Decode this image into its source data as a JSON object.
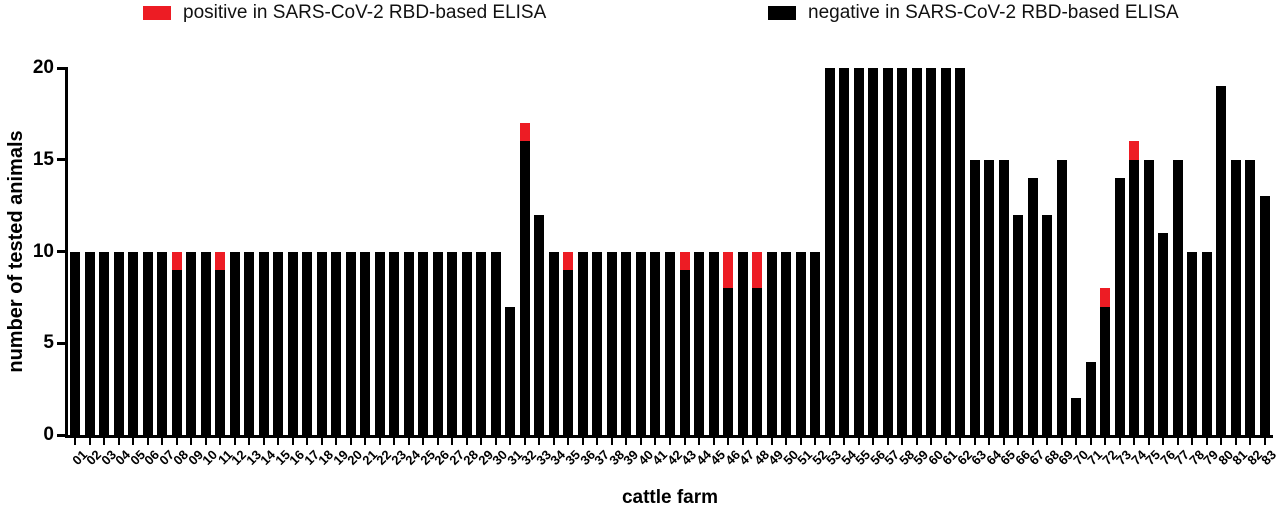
{
  "figure": {
    "kind": "stacked bar chart",
    "background": "#ffffff"
  },
  "legend": {
    "positive_label": "positive in SARS-CoV-2 RBD-based ELISA",
    "negative_label": "negative in SARS-CoV-2 RBD-based ELISA"
  },
  "chart_data": {
    "type": "bar",
    "stacked": true,
    "title": "",
    "xlabel": "cattle farm",
    "ylabel": "number of tested animals",
    "ylim": [
      0,
      20
    ],
    "yticks": [
      0,
      5,
      10,
      15,
      20
    ],
    "grid": false,
    "legend_position": "top",
    "series": [
      {
        "name": "positive in SARS-CoV-2 RBD-based ELISA",
        "color": "#ed1c24"
      },
      {
        "name": "negative in SARS-CoV-2 RBD-based ELISA",
        "color": "#000000"
      }
    ],
    "categories": [
      "01",
      "02",
      "03",
      "04",
      "05",
      "06",
      "07",
      "08",
      "09",
      "10",
      "11",
      "12",
      "13",
      "14",
      "15",
      "16",
      "17",
      "18",
      "19",
      "20",
      "21",
      "22",
      "23",
      "24",
      "25",
      "26",
      "27",
      "28",
      "29",
      "30",
      "31",
      "32",
      "33",
      "34",
      "35",
      "36",
      "37",
      "38",
      "39",
      "40",
      "41",
      "42",
      "43",
      "44",
      "45",
      "46",
      "47",
      "48",
      "49",
      "50",
      "51",
      "52",
      "53",
      "54",
      "55",
      "56",
      "57",
      "58",
      "59",
      "60",
      "61",
      "62",
      "63",
      "64",
      "65",
      "66",
      "67",
      "68",
      "69",
      "70",
      "71",
      "72",
      "73",
      "74",
      "75",
      "76",
      "77",
      "78",
      "79",
      "80",
      "81",
      "82",
      "83"
    ],
    "negative": [
      10,
      10,
      10,
      10,
      10,
      10,
      10,
      9,
      10,
      10,
      9,
      10,
      10,
      10,
      10,
      10,
      10,
      10,
      10,
      10,
      10,
      10,
      10,
      10,
      10,
      10,
      10,
      10,
      10,
      10,
      7,
      16,
      12,
      10,
      9,
      10,
      10,
      10,
      10,
      10,
      10,
      10,
      9,
      10,
      10,
      8,
      10,
      8,
      10,
      10,
      10,
      10,
      20,
      20,
      20,
      20,
      20,
      20,
      20,
      20,
      20,
      20,
      15,
      15,
      15,
      12,
      14,
      12,
      15,
      2,
      4,
      7,
      14,
      15,
      15,
      11,
      15,
      10,
      10,
      19,
      15,
      15,
      13
    ],
    "positive": [
      0,
      0,
      0,
      0,
      0,
      0,
      0,
      1,
      0,
      0,
      1,
      0,
      0,
      0,
      0,
      0,
      0,
      0,
      0,
      0,
      0,
      0,
      0,
      0,
      0,
      0,
      0,
      0,
      0,
      0,
      0,
      1,
      0,
      0,
      1,
      0,
      0,
      0,
      0,
      0,
      0,
      0,
      1,
      0,
      0,
      2,
      0,
      2,
      0,
      0,
      0,
      0,
      0,
      0,
      0,
      0,
      0,
      0,
      0,
      0,
      0,
      0,
      0,
      0,
      0,
      0,
      0,
      0,
      0,
      0,
      0,
      1,
      0,
      1,
      0,
      0,
      0,
      0,
      0,
      0,
      0,
      0,
      0
    ]
  }
}
